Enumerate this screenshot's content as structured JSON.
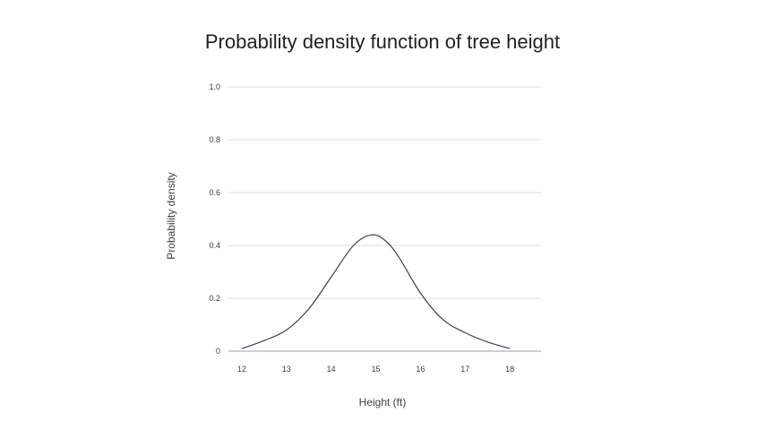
{
  "chart_data": {
    "type": "line",
    "title": "Probability density function of tree height",
    "xlabel": "Height (ft)",
    "ylabel": "Probability density",
    "x_ticks": [
      "12",
      "13",
      "14",
      "15",
      "16",
      "17",
      "18"
    ],
    "y_ticks": [
      "0",
      "0.2",
      "0.4",
      "0.6",
      "0.8",
      "1.0"
    ],
    "xlim": [
      11.7,
      18.7
    ],
    "ylim": [
      0,
      1.0
    ],
    "grid": true,
    "series": [
      {
        "color": "#3c4043",
        "x": [
          12,
          12.5,
          13,
          13.5,
          14,
          14.5,
          14.9,
          15.2,
          15.5,
          16,
          16.5,
          17,
          17.5,
          18
        ],
        "y": [
          0.01,
          0.04,
          0.08,
          0.16,
          0.28,
          0.4,
          0.44,
          0.42,
          0.36,
          0.22,
          0.12,
          0.07,
          0.035,
          0.01
        ]
      }
    ]
  }
}
